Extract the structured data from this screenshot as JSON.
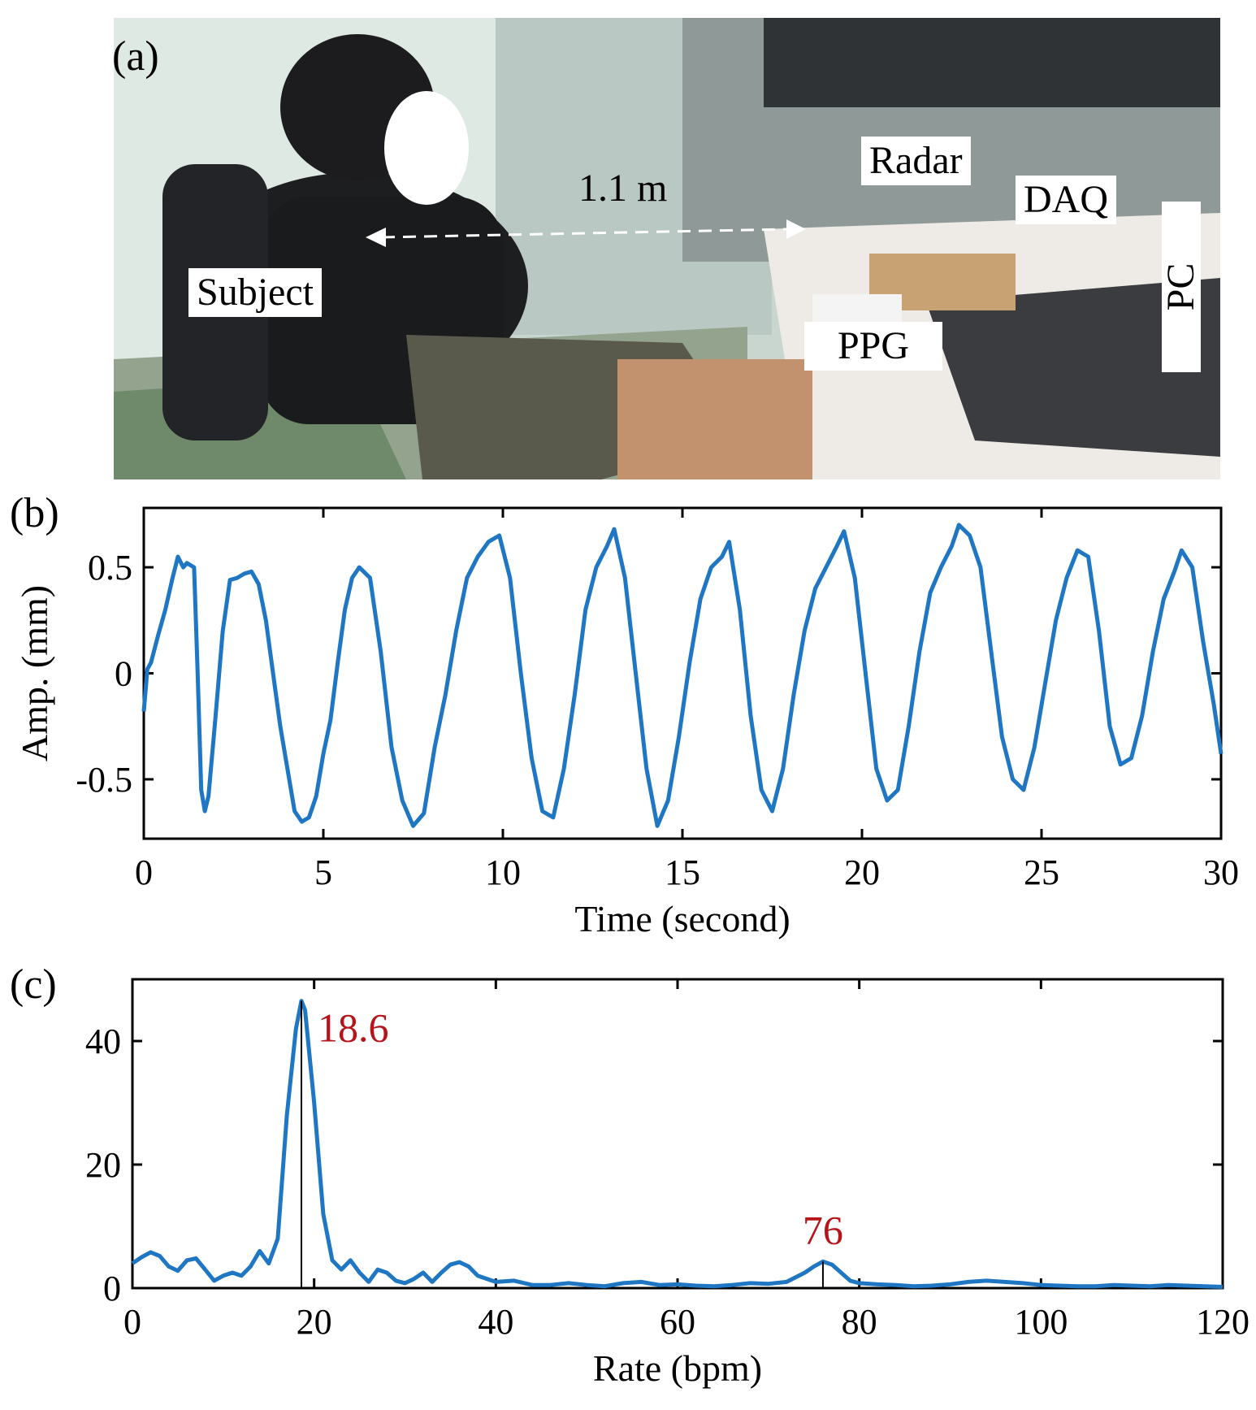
{
  "panels": {
    "a": "(a)",
    "b": "(b)",
    "c": "(c)"
  },
  "photo": {
    "labels": {
      "subject": "Subject",
      "distance": "1.1 m",
      "radar": "Radar",
      "daq": "DAQ",
      "ppg": "PPG",
      "pc": "PC"
    }
  },
  "colors": {
    "line": "#1f77c4",
    "annotation": "#b5141b"
  },
  "chart_data": [
    {
      "type": "line",
      "xlabel": "Time (second)",
      "ylabel": "Amp. (mm)",
      "xlim": [
        0,
        30
      ],
      "ylim": [
        -0.78,
        0.78
      ],
      "xticks": [
        0,
        5,
        10,
        15,
        20,
        25,
        30
      ],
      "yticks": [
        -0.5,
        0,
        0.5
      ],
      "ytick_labels": [
        "-0.5",
        "0",
        "0.5"
      ],
      "grid": false,
      "series": [
        {
          "x": [
            0,
            0.1,
            0.2,
            0.4,
            0.6,
            0.8,
            0.95,
            1.1,
            1.2,
            1.4,
            1.5,
            1.6,
            1.7,
            1.8,
            2.0,
            2.2,
            2.4,
            2.6,
            2.8,
            3.0,
            3.2,
            3.4,
            3.6,
            3.8,
            4.0,
            4.2,
            4.4,
            4.6,
            4.8,
            5.0,
            5.2,
            5.4,
            5.6,
            5.8,
            6.0,
            6.3,
            6.6,
            6.9,
            7.2,
            7.5,
            7.8,
            8.1,
            8.4,
            8.7,
            9.0,
            9.3,
            9.6,
            9.9,
            10.2,
            10.5,
            10.8,
            11.1,
            11.4,
            11.7,
            12.0,
            12.3,
            12.6,
            12.9,
            13.1,
            13.4,
            13.7,
            14.0,
            14.3,
            14.6,
            14.9,
            15.2,
            15.5,
            15.8,
            16.1,
            16.3,
            16.6,
            16.9,
            17.2,
            17.5,
            17.8,
            18.1,
            18.4,
            18.7,
            19.0,
            19.3,
            19.5,
            19.8,
            20.1,
            20.4,
            20.7,
            21.0,
            21.3,
            21.6,
            21.9,
            22.2,
            22.5,
            22.7,
            23.0,
            23.3,
            23.6,
            23.9,
            24.2,
            24.5,
            24.8,
            25.1,
            25.4,
            25.7,
            26.0,
            26.3,
            26.6,
            26.9,
            27.2,
            27.5,
            27.8,
            28.1,
            28.4,
            28.7,
            28.9,
            29.2,
            29.5,
            29.8,
            30.0
          ],
          "y": [
            -0.18,
            0.02,
            0.05,
            0.18,
            0.3,
            0.45,
            0.55,
            0.5,
            0.52,
            0.5,
            0.0,
            -0.55,
            -0.65,
            -0.58,
            -0.2,
            0.2,
            0.44,
            0.45,
            0.47,
            0.48,
            0.42,
            0.25,
            0.0,
            -0.25,
            -0.45,
            -0.65,
            -0.7,
            -0.68,
            -0.58,
            -0.38,
            -0.22,
            0.05,
            0.3,
            0.45,
            0.5,
            0.45,
            0.1,
            -0.35,
            -0.6,
            -0.72,
            -0.66,
            -0.35,
            -0.1,
            0.2,
            0.45,
            0.55,
            0.62,
            0.65,
            0.45,
            0.0,
            -0.4,
            -0.65,
            -0.68,
            -0.45,
            -0.1,
            0.3,
            0.5,
            0.6,
            0.68,
            0.45,
            0.0,
            -0.45,
            -0.72,
            -0.6,
            -0.3,
            0.05,
            0.35,
            0.5,
            0.55,
            0.62,
            0.3,
            -0.2,
            -0.55,
            -0.65,
            -0.45,
            -0.1,
            0.2,
            0.4,
            0.5,
            0.6,
            0.67,
            0.45,
            0.0,
            -0.45,
            -0.6,
            -0.55,
            -0.25,
            0.1,
            0.38,
            0.5,
            0.6,
            0.7,
            0.65,
            0.5,
            0.1,
            -0.3,
            -0.5,
            -0.55,
            -0.35,
            -0.05,
            0.25,
            0.45,
            0.58,
            0.55,
            0.2,
            -0.25,
            -0.43,
            -0.4,
            -0.2,
            0.1,
            0.35,
            0.48,
            0.58,
            0.5,
            0.15,
            -0.15,
            -0.38
          ]
        }
      ]
    },
    {
      "type": "line",
      "xlabel": "Rate (bpm)",
      "ylabel": "",
      "xlim": [
        0,
        120
      ],
      "ylim": [
        0,
        50
      ],
      "xticks": [
        0,
        20,
        40,
        60,
        80,
        100,
        120
      ],
      "yticks": [
        0,
        20,
        40
      ],
      "grid": false,
      "series": [
        {
          "x": [
            0,
            1,
            2,
            3,
            4,
            5,
            6,
            7,
            8,
            9,
            10,
            11,
            12,
            13,
            14,
            15,
            16,
            17,
            18,
            18.6,
            19,
            20,
            21,
            22,
            23,
            24,
            25,
            26,
            27,
            28,
            29,
            30,
            31,
            32,
            33,
            34,
            35,
            36,
            37,
            38,
            39,
            40,
            42,
            44,
            46,
            48,
            50,
            52,
            54,
            56,
            58,
            60,
            62,
            64,
            66,
            68,
            70,
            72,
            74,
            75,
            76,
            77,
            78,
            79,
            80,
            82,
            84,
            86,
            88,
            90,
            92,
            94,
            96,
            98,
            100,
            102,
            104,
            106,
            108,
            110,
            112,
            114,
            116,
            118,
            120
          ],
          "y": [
            4.0,
            5.0,
            5.8,
            5.2,
            3.5,
            2.8,
            4.5,
            4.8,
            3.0,
            1.2,
            2.0,
            2.5,
            2.0,
            3.5,
            6.0,
            4.0,
            8.0,
            28.0,
            42.0,
            46.5,
            45.0,
            30.0,
            12.0,
            4.5,
            3.0,
            4.5,
            2.5,
            1.0,
            3.0,
            2.5,
            1.2,
            0.8,
            1.5,
            2.5,
            1.0,
            2.5,
            3.8,
            4.2,
            3.5,
            2.0,
            1.5,
            1.0,
            1.2,
            0.5,
            0.5,
            0.8,
            0.5,
            0.3,
            0.8,
            1.0,
            0.5,
            0.6,
            0.4,
            0.3,
            0.5,
            0.8,
            0.7,
            1.0,
            2.5,
            3.5,
            4.3,
            3.8,
            2.5,
            1.2,
            0.8,
            0.6,
            0.5,
            0.3,
            0.4,
            0.6,
            1.0,
            1.2,
            1.0,
            0.8,
            0.5,
            0.4,
            0.3,
            0.3,
            0.5,
            0.4,
            0.3,
            0.5,
            0.4,
            0.3,
            0.2
          ]
        }
      ],
      "annotations": [
        {
          "x": 18.6,
          "y": 46.5,
          "text": "18.6"
        },
        {
          "x": 76,
          "y": 4.3,
          "text": "76"
        }
      ]
    }
  ]
}
